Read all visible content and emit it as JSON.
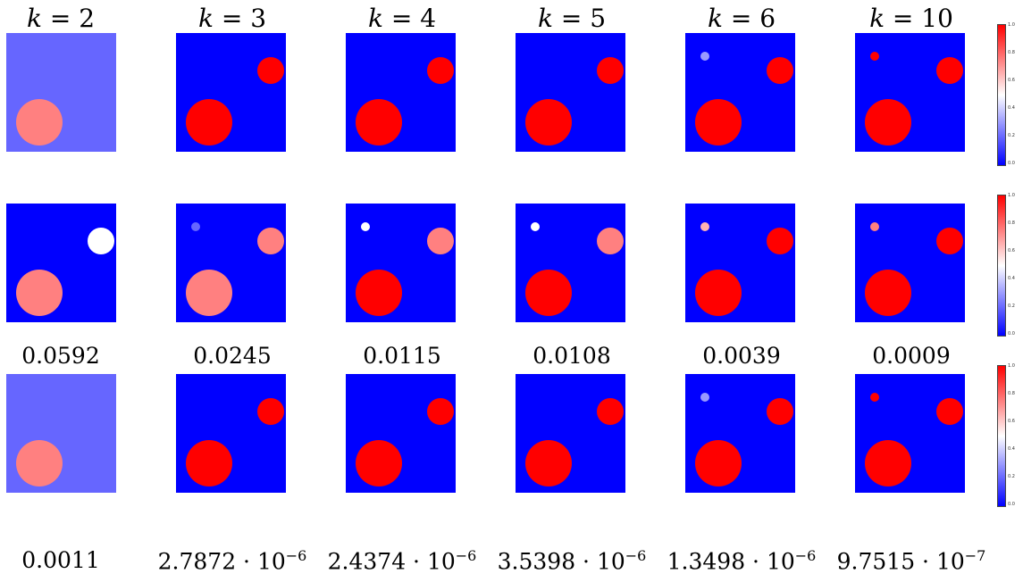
{
  "columns": [
    {
      "k_label": "k",
      "eq": " = 2"
    },
    {
      "k_label": "k",
      "eq": " = 3"
    },
    {
      "k_label": "k",
      "eq": " = 4"
    },
    {
      "k_label": "k",
      "eq": " = 5"
    },
    {
      "k_label": "k",
      "eq": " = 6"
    },
    {
      "k_label": "k",
      "eq": " = 10"
    }
  ],
  "row2_captions": [
    "0.0592",
    "0.0245",
    "0.0115",
    "0.0108",
    "0.0039",
    "0.0009"
  ],
  "row3_captions": [
    {
      "mantissa": "0.0011",
      "exp": ""
    },
    {
      "mantissa": "2.7872 · 10",
      "exp": "−6"
    },
    {
      "mantissa": "2.4374 · 10",
      "exp": "−6"
    },
    {
      "mantissa": "3.5398 · 10",
      "exp": "−6"
    },
    {
      "mantissa": "1.3498 · 10",
      "exp": "−6"
    },
    {
      "mantissa": "9.7515 · 10",
      "exp": "−7"
    }
  ],
  "colorbar_ticks": [
    "1.0",
    "0.8",
    "0.6",
    "0.4",
    "0.2",
    "0.0"
  ],
  "colormap": {
    "low": "#0000ff",
    "mid": "#ffffff",
    "high": "#ff0000"
  },
  "panels": [
    [
      {
        "bg": 0.2,
        "big": 0.75,
        "med": null,
        "small": null
      },
      {
        "bg": 0.0,
        "big": 1.0,
        "med": 1.0,
        "small": null
      },
      {
        "bg": 0.0,
        "big": 1.0,
        "med": 1.0,
        "small": null
      },
      {
        "bg": 0.0,
        "big": 1.0,
        "med": 1.0,
        "small": null
      },
      {
        "bg": 0.0,
        "big": 1.0,
        "med": 1.0,
        "small": 0.3
      },
      {
        "bg": 0.0,
        "big": 1.0,
        "med": 1.0,
        "small": 1.0
      }
    ],
    [
      {
        "bg": 0.0,
        "big": 0.75,
        "med": 0.5,
        "small": null
      },
      {
        "bg": 0.0,
        "big": 0.75,
        "med": 0.75,
        "small": 0.2
      },
      {
        "bg": 0.0,
        "big": 1.0,
        "med": 0.75,
        "small": 0.5
      },
      {
        "bg": 0.0,
        "big": 1.0,
        "med": 0.75,
        "small": 0.5
      },
      {
        "bg": 0.0,
        "big": 1.0,
        "med": 1.0,
        "small": 0.65
      },
      {
        "bg": 0.0,
        "big": 1.0,
        "med": 1.0,
        "small": 0.75
      }
    ],
    [
      {
        "bg": 0.2,
        "big": 0.75,
        "med": null,
        "small": null
      },
      {
        "bg": 0.0,
        "big": 1.0,
        "med": 1.0,
        "small": null
      },
      {
        "bg": 0.0,
        "big": 1.0,
        "med": 1.0,
        "small": null
      },
      {
        "bg": 0.0,
        "big": 1.0,
        "med": 1.0,
        "small": null
      },
      {
        "bg": 0.0,
        "big": 1.0,
        "med": 1.0,
        "small": 0.3
      },
      {
        "bg": 0.0,
        "big": 1.0,
        "med": 1.0,
        "small": 1.0
      }
    ]
  ]
}
